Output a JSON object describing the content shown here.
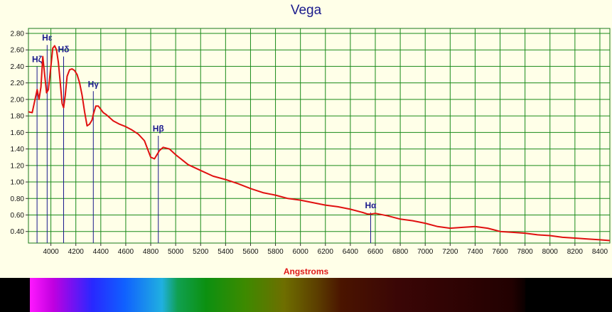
{
  "chart_data": {
    "type": "line",
    "title": "Vega",
    "xlabel": "Angstroms",
    "ylabel": "",
    "xlim": [
      3820,
      8480
    ],
    "ylim": [
      0.26,
      2.86
    ],
    "grid": true,
    "x_ticks": [
      4000,
      4200,
      4400,
      4600,
      4800,
      5000,
      5200,
      5400,
      5600,
      5800,
      6000,
      6200,
      6400,
      6600,
      6800,
      7000,
      7200,
      7400,
      7600,
      7800,
      8000,
      8200,
      8400
    ],
    "y_ticks": [
      "0.40",
      "0.60",
      "0.80",
      "1.00",
      "1.20",
      "1.40",
      "1.60",
      "1.80",
      "2.00",
      "2.20",
      "2.40",
      "2.60",
      "2.80"
    ],
    "series": [
      {
        "color": "#e01010",
        "x": [
          3820,
          3850,
          3870,
          3890,
          3905,
          3920,
          3935,
          3950,
          3965,
          3980,
          4000,
          4015,
          4030,
          4045,
          4060,
          4075,
          4090,
          4102,
          4115,
          4130,
          4150,
          4170,
          4190,
          4210,
          4230,
          4250,
          4270,
          4290,
          4310,
          4330,
          4340,
          4360,
          4380,
          4400,
          4420,
          4440,
          4470,
          4500,
          4550,
          4600,
          4650,
          4700,
          4750,
          4800,
          4830,
          4850,
          4870,
          4900,
          4950,
          5000,
          5050,
          5100,
          5200,
          5300,
          5400,
          5500,
          5600,
          5700,
          5800,
          5900,
          6000,
          6100,
          6200,
          6300,
          6400,
          6500,
          6540,
          6563,
          6600,
          6700,
          6800,
          6900,
          7000,
          7100,
          7200,
          7300,
          7400,
          7500,
          7550,
          7600,
          7700,
          7800,
          7900,
          8000,
          8100,
          8200,
          8300,
          8400,
          8480
        ],
        "y": [
          1.85,
          1.84,
          1.98,
          2.12,
          2.0,
          2.15,
          2.52,
          2.3,
          2.08,
          2.12,
          2.4,
          2.62,
          2.65,
          2.6,
          2.45,
          2.2,
          1.95,
          1.9,
          2.05,
          2.28,
          2.36,
          2.37,
          2.35,
          2.3,
          2.2,
          2.05,
          1.85,
          1.68,
          1.7,
          1.75,
          1.82,
          1.92,
          1.92,
          1.88,
          1.84,
          1.82,
          1.78,
          1.74,
          1.7,
          1.67,
          1.63,
          1.58,
          1.5,
          1.3,
          1.28,
          1.33,
          1.38,
          1.42,
          1.4,
          1.33,
          1.27,
          1.21,
          1.14,
          1.07,
          1.03,
          0.98,
          0.92,
          0.87,
          0.84,
          0.8,
          0.78,
          0.75,
          0.72,
          0.7,
          0.67,
          0.63,
          0.61,
          0.61,
          0.62,
          0.59,
          0.55,
          0.53,
          0.5,
          0.46,
          0.44,
          0.45,
          0.46,
          0.44,
          0.42,
          0.4,
          0.39,
          0.38,
          0.36,
          0.35,
          0.33,
          0.32,
          0.31,
          0.3,
          0.29
        ]
      }
    ],
    "annotations": [
      {
        "label": "Hζ",
        "x": 3889,
        "y_top": 2.4
      },
      {
        "label": "Hε",
        "x": 3970,
        "y_top": 2.66
      },
      {
        "label": "Hδ",
        "x": 4102,
        "y_top": 2.52
      },
      {
        "label": "Hγ",
        "x": 4340,
        "y_top": 2.1
      },
      {
        "label": "Hβ",
        "x": 4861,
        "y_top": 1.56
      },
      {
        "label": "Hα",
        "x": 6563,
        "y_top": 0.63
      }
    ]
  }
}
